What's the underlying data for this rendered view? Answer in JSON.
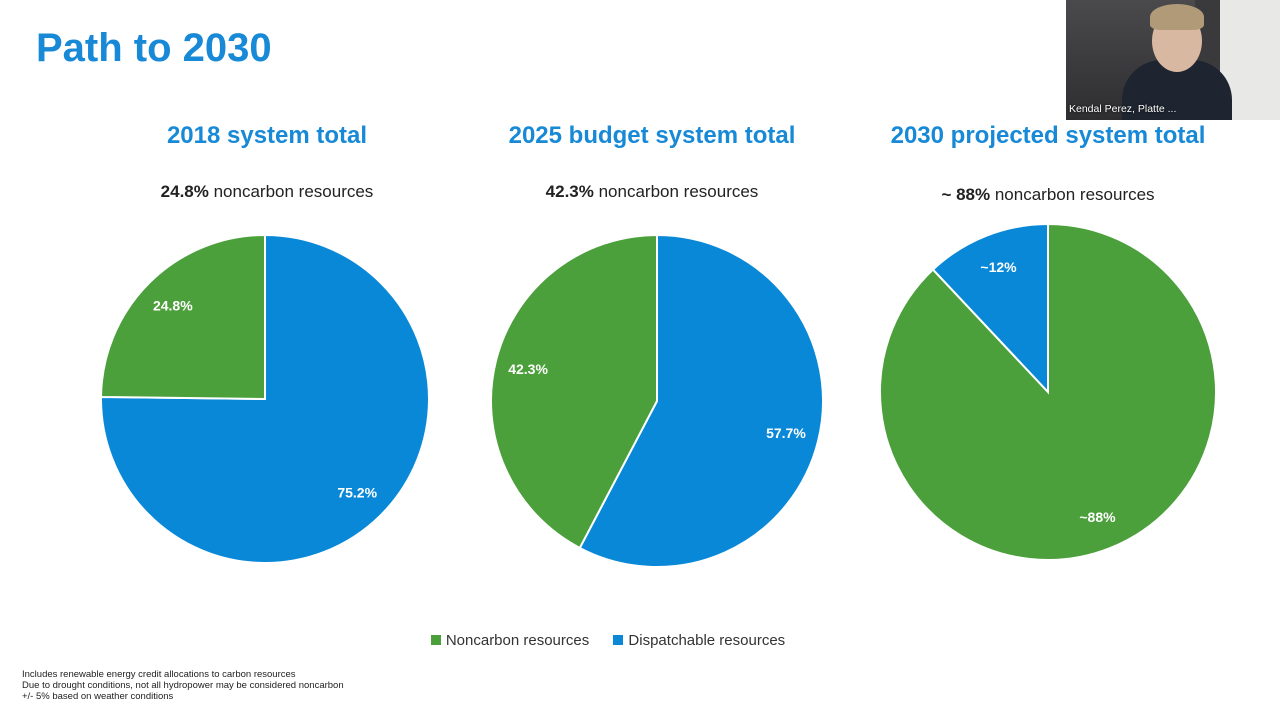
{
  "title": "Path to 2030",
  "chart_data": [
    {
      "type": "pie",
      "title": "2018 system total",
      "subtitle_value": "24.8%",
      "subtitle_text": " noncarbon resources",
      "slices": [
        {
          "name": "Dispatchable resources",
          "value": 75.2,
          "label": "75.2%"
        },
        {
          "name": "Noncarbon resources",
          "value": 24.8,
          "label": "24.8%"
        }
      ]
    },
    {
      "type": "pie",
      "title": "2025 budget system total",
      "subtitle_value": "42.3%",
      "subtitle_text": " noncarbon resources",
      "slices": [
        {
          "name": "Dispatchable resources",
          "value": 57.7,
          "label": "57.7%"
        },
        {
          "name": "Noncarbon resources",
          "value": 42.3,
          "label": "42.3%"
        }
      ]
    },
    {
      "type": "pie",
      "title": "2030 projected system total",
      "subtitle_value": "~ 88%",
      "subtitle_text": " noncarbon resources",
      "slices": [
        {
          "name": "Noncarbon resources",
          "value": 88,
          "label": "~88%"
        },
        {
          "name": "Dispatchable resources",
          "value": 12,
          "label": "~12%"
        }
      ]
    }
  ],
  "legend": [
    {
      "name": "Noncarbon resources",
      "color": "#4ca03c"
    },
    {
      "name": "Dispatchable resources",
      "color": "#0a88d8"
    }
  ],
  "notes": [
    "Includes renewable energy credit allocations to carbon resources",
    "Due to drought conditions, not all hydropower may be considered noncarbon",
    "+/- 5% based on weather conditions"
  ],
  "video": {
    "name": "Kendal Perez, Platte ..."
  }
}
